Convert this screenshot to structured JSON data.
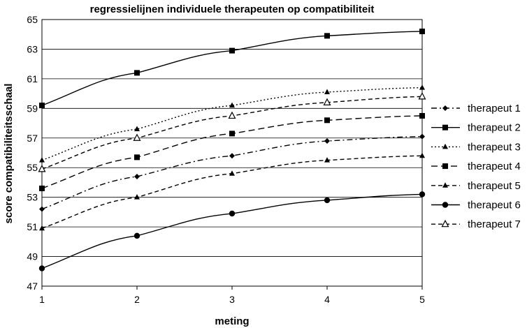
{
  "chart_data": {
    "type": "line",
    "title": "regressielijnen individuele therapeuten op compatibiliteit",
    "xlabel": "meting",
    "ylabel": "score compatibiliteitsschaal",
    "x": [
      1,
      2,
      3,
      4,
      5
    ],
    "xlim": [
      1,
      5
    ],
    "ylim": [
      47,
      65
    ],
    "yticks": [
      47,
      49,
      51,
      53,
      55,
      57,
      59,
      61,
      63,
      65
    ],
    "grid": "horizontal",
    "legend_position": "right",
    "series": [
      {
        "name": "therapeut 1",
        "values": [
          52.2,
          54.4,
          55.8,
          56.8,
          57.1
        ],
        "marker": "diamond",
        "dash": "dash-dot"
      },
      {
        "name": "therapeut 2",
        "values": [
          59.2,
          61.4,
          62.9,
          63.9,
          64.2
        ],
        "marker": "square",
        "dash": "solid"
      },
      {
        "name": "therapeut 3",
        "values": [
          55.5,
          57.6,
          59.2,
          60.1,
          60.4
        ],
        "marker": "triangle",
        "dash": "dotted"
      },
      {
        "name": "therapeut 4",
        "values": [
          53.6,
          55.7,
          57.3,
          58.2,
          58.5
        ],
        "marker": "square",
        "dash": "long-dash"
      },
      {
        "name": "therapeut 5",
        "values": [
          50.9,
          53.0,
          54.6,
          55.5,
          55.8
        ],
        "marker": "triangle",
        "dash": "dash"
      },
      {
        "name": "therapeut 6",
        "values": [
          48.2,
          50.4,
          51.9,
          52.8,
          53.2
        ],
        "marker": "circle",
        "dash": "solid"
      },
      {
        "name": "therapeut 7",
        "values": [
          54.9,
          57.0,
          58.5,
          59.4,
          59.8
        ],
        "marker": "triangle-open",
        "dash": "dash"
      }
    ]
  }
}
